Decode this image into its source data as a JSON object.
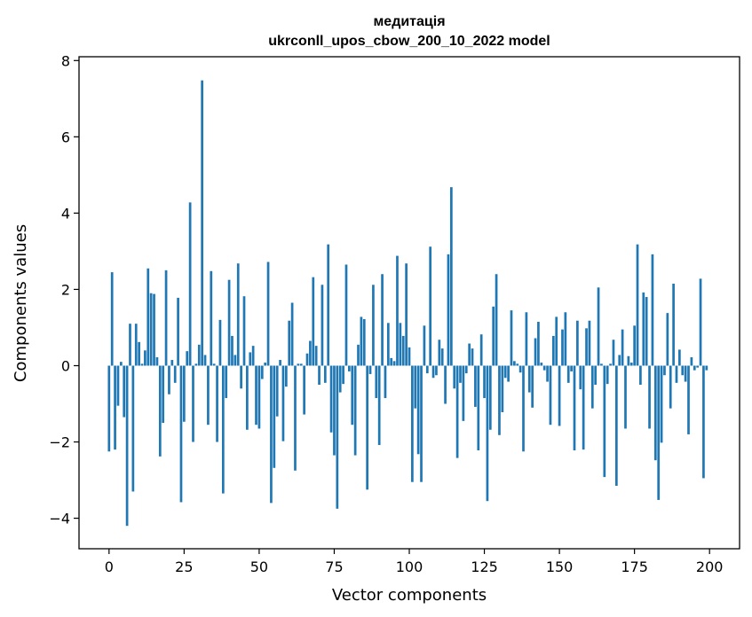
{
  "chart_data": {
    "type": "bar",
    "title_line1": "медитація",
    "title_line2": "ukrconll_upos_cbow_200_10_2022 model",
    "xlabel": "Vector components",
    "ylabel": "Components values",
    "xlim": [
      -10,
      210
    ],
    "ylim": [
      -4.8,
      8.1
    ],
    "xticks": [
      0,
      25,
      50,
      75,
      100,
      125,
      150,
      175,
      200
    ],
    "xtick_labels": [
      "0",
      "25",
      "50",
      "75",
      "100",
      "125",
      "150",
      "175",
      "200"
    ],
    "yticks": [
      -4,
      -2,
      0,
      2,
      4,
      6,
      8
    ],
    "ytick_labels": [
      "−4",
      "−2",
      "0",
      "2",
      "4",
      "6",
      "8"
    ],
    "bar_color": "#1f77b4",
    "grid": false,
    "x": [
      0,
      1,
      2,
      3,
      4,
      5,
      6,
      7,
      8,
      9,
      10,
      11,
      12,
      13,
      14,
      15,
      16,
      17,
      18,
      19,
      20,
      21,
      22,
      23,
      24,
      25,
      26,
      27,
      28,
      29,
      30,
      31,
      32,
      33,
      34,
      35,
      36,
      37,
      38,
      39,
      40,
      41,
      42,
      43,
      44,
      45,
      46,
      47,
      48,
      49,
      50,
      51,
      52,
      53,
      54,
      55,
      56,
      57,
      58,
      59,
      60,
      61,
      62,
      63,
      64,
      65,
      66,
      67,
      68,
      69,
      70,
      71,
      72,
      73,
      74,
      75,
      76,
      77,
      78,
      79,
      80,
      81,
      82,
      83,
      84,
      85,
      86,
      87,
      88,
      89,
      90,
      91,
      92,
      93,
      94,
      95,
      96,
      97,
      98,
      99,
      100,
      101,
      102,
      103,
      104,
      105,
      106,
      107,
      108,
      109,
      110,
      111,
      112,
      113,
      114,
      115,
      116,
      117,
      118,
      119,
      120,
      121,
      122,
      123,
      124,
      125,
      126,
      127,
      128,
      129,
      130,
      131,
      132,
      133,
      134,
      135,
      136,
      137,
      138,
      139,
      140,
      141,
      142,
      143,
      144,
      145,
      146,
      147,
      148,
      149,
      150,
      151,
      152,
      153,
      154,
      155,
      156,
      157,
      158,
      159,
      160,
      161,
      162,
      163,
      164,
      165,
      166,
      167,
      168,
      169,
      170,
      171,
      172,
      173,
      174,
      175,
      176,
      177,
      178,
      179,
      180,
      181,
      182,
      183,
      184,
      185,
      186,
      187,
      188,
      189,
      190,
      191,
      192,
      193,
      194,
      195,
      196,
      197,
      198,
      199
    ],
    "values": [
      -2.25,
      2.45,
      -2.2,
      -1.05,
      0.1,
      -1.35,
      -4.2,
      1.1,
      -3.3,
      1.1,
      0.62,
      0.05,
      0.4,
      2.55,
      1.9,
      1.88,
      0.22,
      -2.38,
      -1.5,
      2.5,
      -0.75,
      0.15,
      -0.45,
      1.78,
      -3.58,
      -1.47,
      0.38,
      4.28,
      -2.0,
      0.05,
      0.55,
      7.48,
      0.28,
      -1.55,
      2.48,
      0.05,
      -2.0,
      1.2,
      -3.35,
      -0.85,
      2.25,
      0.78,
      0.28,
      2.68,
      -0.6,
      1.82,
      -1.68,
      0.35,
      0.52,
      -1.55,
      -1.65,
      -0.35,
      0.08,
      2.72,
      -3.6,
      -2.68,
      -1.33,
      0.15,
      -1.98,
      -0.55,
      1.18,
      1.65,
      -2.75,
      0.05,
      0.05,
      -1.28,
      0.32,
      0.65,
      2.32,
      0.52,
      -0.5,
      2.12,
      -0.45,
      3.18,
      -1.75,
      -2.35,
      -3.75,
      -0.7,
      -0.48,
      2.65,
      -0.15,
      -1.55,
      -2.35,
      0.55,
      1.28,
      1.22,
      -3.25,
      -0.22,
      2.12,
      -0.85,
      -2.08,
      2.4,
      -0.85,
      1.12,
      0.2,
      0.12,
      2.88,
      1.12,
      0.78,
      2.68,
      0.48,
      -3.05,
      -1.12,
      -2.32,
      -3.05,
      1.05,
      -0.2,
      3.12,
      -0.32,
      -0.25,
      0.68,
      0.45,
      -1.0,
      2.92,
      4.68,
      -0.6,
      -2.42,
      -0.45,
      -1.45,
      -0.2,
      0.58,
      0.45,
      -1.08,
      -2.22,
      0.82,
      -0.85,
      -3.55,
      -1.68,
      1.55,
      2.4,
      -1.82,
      -1.22,
      -0.32,
      -0.42,
      1.45,
      0.12,
      0.05,
      -0.18,
      -2.25,
      1.4,
      -0.7,
      -1.1,
      0.72,
      1.15,
      0.08,
      -0.12,
      -0.42,
      -1.55,
      0.78,
      1.28,
      -1.58,
      0.95,
      1.4,
      -0.45,
      -0.15,
      -2.22,
      1.18,
      -0.62,
      -2.2,
      0.98,
      1.18,
      -1.12,
      -0.5,
      2.05,
      0.05,
      -2.92,
      -0.48,
      0.05,
      0.68,
      -3.15,
      0.28,
      0.95,
      -1.65,
      0.25,
      0.08,
      1.05,
      3.18,
      -0.5,
      1.92,
      1.8,
      -1.65,
      2.92,
      -2.48,
      -3.52,
      -2.02,
      -0.25,
      1.38,
      -1.12,
      2.15,
      -0.45,
      0.42,
      -0.25,
      -0.42,
      -1.8,
      0.22,
      -0.12,
      -0.05,
      2.28,
      -2.95,
      -0.12
    ]
  }
}
